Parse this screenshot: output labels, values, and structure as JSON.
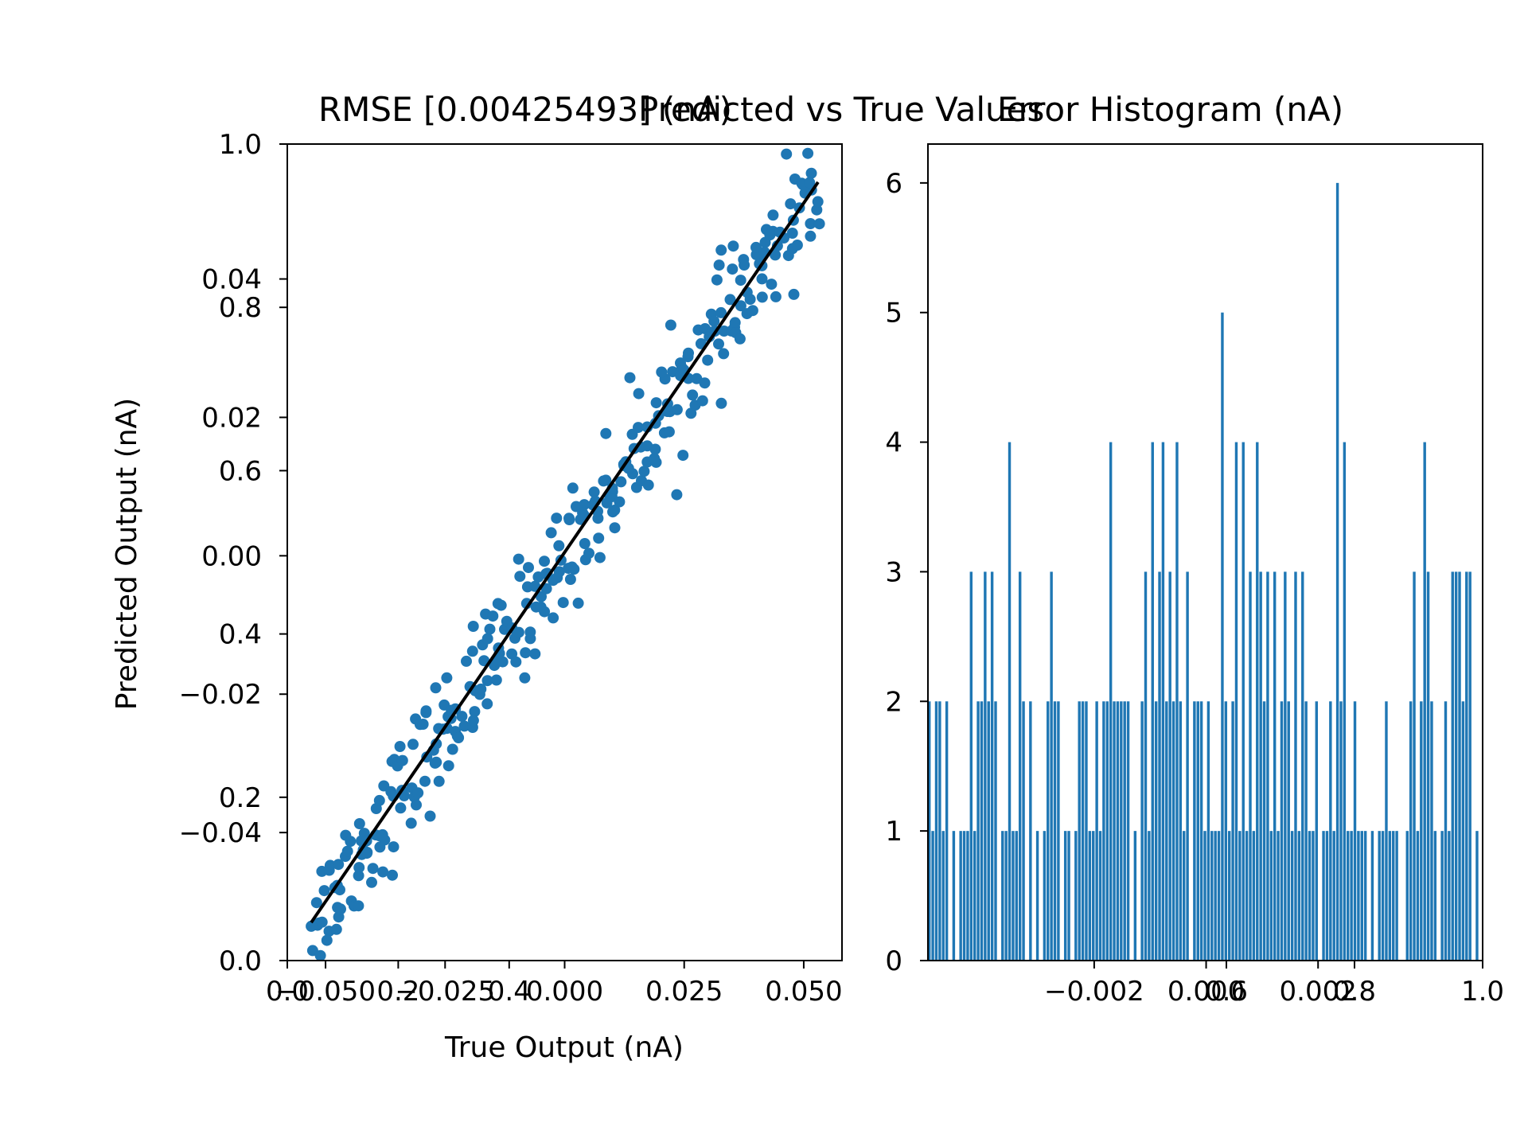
{
  "chart_data": [
    {
      "type": "scatter",
      "titles": [
        "RMSE [0.00425493] (nA)",
        "Predicted vs True Values"
      ],
      "xlabel": "True Output (nA)",
      "ylabel": "Predicted Output (nA)",
      "outer_x_ticks": [
        "0.0",
        "0.2",
        "0.4"
      ],
      "outer_y_ticks": [
        "0.0",
        "0.2",
        "0.4",
        "0.6",
        "0.8",
        "1.0"
      ],
      "x_ticks": [
        "−0.050",
        "−0.025",
        "0.000",
        "0.025",
        "0.050"
      ],
      "y_ticks": [
        "−0.04",
        "−0.02",
        "0.00",
        "0.02",
        "0.04"
      ],
      "xlim": [
        -0.058,
        0.058
      ],
      "ylim": [
        -0.0585,
        0.0595
      ],
      "ideal_line": {
        "x": [
          -0.053,
          0.053
        ],
        "y": [
          -0.053,
          0.054
        ]
      },
      "n_points": 320,
      "noise_std": 0.0042,
      "colors": {
        "points": "#1f77b4",
        "line": "#000000"
      }
    },
    {
      "type": "bar",
      "title": "Error Histogram (nA)",
      "outer_x_ticks": [
        "0.6",
        "0.8",
        "1.0"
      ],
      "x_ticks": [
        "−0.002",
        "0.000",
        "0.002"
      ],
      "y_ticks": [
        "0",
        "1",
        "2",
        "3",
        "4",
        "5",
        "6"
      ],
      "xlim": [
        -0.00497,
        0.00494
      ],
      "ylim": [
        0,
        6.3
      ],
      "bin_width": 4.45e-05,
      "counts": [
        2,
        1,
        2,
        2,
        1,
        2,
        0,
        1,
        0,
        1,
        1,
        1,
        3,
        1,
        2,
        2,
        3,
        2,
        3,
        2,
        0,
        1,
        1,
        4,
        1,
        1,
        3,
        2,
        0,
        2,
        0,
        1,
        0,
        1,
        2,
        3,
        2,
        2,
        0,
        1,
        1,
        0,
        1,
        2,
        2,
        2,
        1,
        1,
        2,
        1,
        2,
        2,
        4,
        2,
        2,
        2,
        2,
        2,
        0,
        1,
        0,
        2,
        3,
        1,
        4,
        2,
        3,
        4,
        2,
        3,
        2,
        4,
        2,
        1,
        3,
        0,
        2,
        2,
        2,
        1,
        2,
        1,
        1,
        1,
        5,
        2,
        1,
        2,
        4,
        1,
        4,
        1,
        3,
        1,
        4,
        3,
        2,
        3,
        1,
        3,
        1,
        2,
        3,
        2,
        1,
        3,
        1,
        3,
        2,
        1,
        1,
        2,
        0,
        1,
        1,
        2,
        1,
        6,
        2,
        4,
        1,
        1,
        2,
        1,
        1,
        1,
        0,
        1,
        0,
        1,
        1,
        2,
        1,
        1,
        1,
        0,
        0,
        1,
        2,
        3,
        1,
        2,
        4,
        3,
        2,
        1,
        0,
        1,
        2,
        1,
        3,
        3,
        3,
        2,
        3,
        3,
        0,
        1,
        0
      ]
    }
  ]
}
